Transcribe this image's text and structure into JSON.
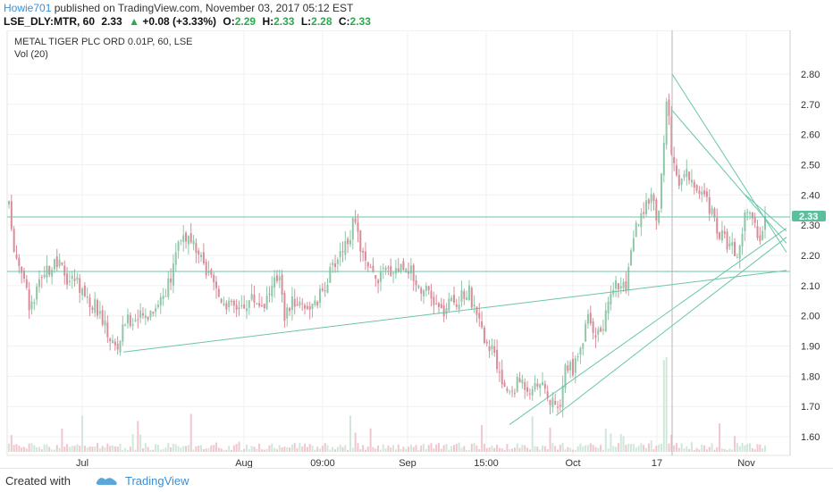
{
  "header": {
    "author": "Howie701",
    "published_text": " published on TradingView.com, November 03, 2017 05:12 EST",
    "symbol": "LSE_DLY:MTR, 60",
    "last": "2.33",
    "change": "+0.08 (+3.33%)",
    "o_label": "O:",
    "o_val": "2.29",
    "h_label": "H:",
    "h_val": "2.33",
    "l_label": "L:",
    "l_val": "2.28",
    "c_label": "C:",
    "c_val": "2.33"
  },
  "footer": {
    "created_with": "Created with",
    "brand": "TradingView"
  },
  "colors": {
    "up": "#8fc7a8",
    "down": "#d98c98",
    "trend": "#69c6a9",
    "price_tag": "#5bbf9f",
    "accent": "#3a8fd6"
  },
  "chart_data": {
    "type": "candlestick",
    "title": "METAL TIGER PLC ORD 0.01P, 60, LSE",
    "volume_label": "Vol (20)",
    "x_ticks": [
      "Jul",
      "Aug",
      "09:00",
      "Sep",
      "15:00",
      "Oct",
      "17",
      "Nov"
    ],
    "y_ticks": [
      "2.80",
      "2.70",
      "2.60",
      "2.50",
      "2.40",
      "2.30",
      "2.20",
      "2.10",
      "2.00",
      "1.90",
      "1.80",
      "1.70",
      "1.60"
    ],
    "ylim": [
      1.55,
      2.85
    ],
    "last_price": "2.33",
    "close_path": [
      [
        0,
        2.38
      ],
      [
        10,
        2.36
      ],
      [
        16,
        2.22
      ],
      [
        24,
        2.16
      ],
      [
        34,
        2.02
      ],
      [
        44,
        2.1
      ],
      [
        56,
        2.16
      ],
      [
        66,
        2.17
      ],
      [
        76,
        2.12
      ],
      [
        86,
        2.12
      ],
      [
        96,
        2.06
      ],
      [
        110,
        2.02
      ],
      [
        124,
        1.92
      ],
      [
        131,
        1.89
      ],
      [
        140,
        1.98
      ],
      [
        150,
        1.99
      ],
      [
        163,
        2.0
      ],
      [
        178,
        2.05
      ],
      [
        192,
        2.12
      ],
      [
        198,
        2.25
      ],
      [
        206,
        2.27
      ],
      [
        218,
        2.22
      ],
      [
        230,
        2.15
      ],
      [
        244,
        2.07
      ],
      [
        258,
        2.03
      ],
      [
        270,
        2.03
      ],
      [
        282,
        2.06
      ],
      [
        294,
        2.04
      ],
      [
        304,
        2.09
      ],
      [
        314,
        2.15
      ],
      [
        318,
        2.0
      ],
      [
        328,
        2.05
      ],
      [
        340,
        2.04
      ],
      [
        352,
        2.03
      ],
      [
        366,
        2.12
      ],
      [
        380,
        2.21
      ],
      [
        392,
        2.27
      ],
      [
        396,
        2.31
      ],
      [
        402,
        2.24
      ],
      [
        410,
        2.16
      ],
      [
        420,
        2.12
      ],
      [
        432,
        2.15
      ],
      [
        444,
        2.16
      ],
      [
        456,
        2.17
      ],
      [
        466,
        2.11
      ],
      [
        476,
        2.08
      ],
      [
        486,
        2.04
      ],
      [
        496,
        2.01
      ],
      [
        506,
        2.05
      ],
      [
        514,
        2.05
      ],
      [
        524,
        2.09
      ],
      [
        532,
        2.0
      ],
      [
        542,
        1.93
      ],
      [
        552,
        1.87
      ],
      [
        560,
        1.79
      ],
      [
        570,
        1.74
      ],
      [
        582,
        1.79
      ],
      [
        592,
        1.76
      ],
      [
        602,
        1.79
      ],
      [
        612,
        1.73
      ],
      [
        622,
        1.69
      ],
      [
        626,
        1.67
      ],
      [
        632,
        1.84
      ],
      [
        640,
        1.82
      ],
      [
        648,
        1.88
      ],
      [
        658,
        1.99
      ],
      [
        668,
        1.94
      ],
      [
        676,
        1.97
      ],
      [
        684,
        2.1
      ],
      [
        692,
        2.11
      ],
      [
        700,
        2.08
      ],
      [
        706,
        2.2
      ],
      [
        712,
        2.3
      ],
      [
        720,
        2.33
      ],
      [
        728,
        2.42
      ],
      [
        736,
        2.31
      ],
      [
        742,
        2.53
      ],
      [
        746,
        2.72
      ],
      [
        752,
        2.53
      ],
      [
        760,
        2.45
      ],
      [
        768,
        2.48
      ],
      [
        776,
        2.43
      ],
      [
        784,
        2.4
      ],
      [
        792,
        2.38
      ],
      [
        800,
        2.3
      ],
      [
        810,
        2.25
      ],
      [
        818,
        2.23
      ],
      [
        826,
        2.18
      ],
      [
        834,
        2.37
      ],
      [
        842,
        2.31
      ],
      [
        850,
        2.26
      ],
      [
        856,
        2.33
      ]
    ],
    "candle_count": 300,
    "trend_lines": [
      [
        [
          138,
          1.88
        ],
        [
          880,
          2.15
        ]
      ],
      [
        [
          570,
          1.64
        ],
        [
          880,
          2.29
        ]
      ],
      [
        [
          622,
          1.67
        ],
        [
          880,
          2.26
        ]
      ],
      [
        [
          752,
          2.8
        ],
        [
          880,
          2.21
        ]
      ],
      [
        [
          752,
          2.68
        ],
        [
          880,
          2.24
        ]
      ],
      [
        [
          834,
          2.4
        ],
        [
          880,
          2.28
        ]
      ]
    ],
    "h_lines": [
      2.147,
      2.327
    ],
    "v_marker_x": 752,
    "x_ticks_pos": [
      92,
      273,
      361,
      456,
      544,
      641,
      735,
      835
    ]
  }
}
